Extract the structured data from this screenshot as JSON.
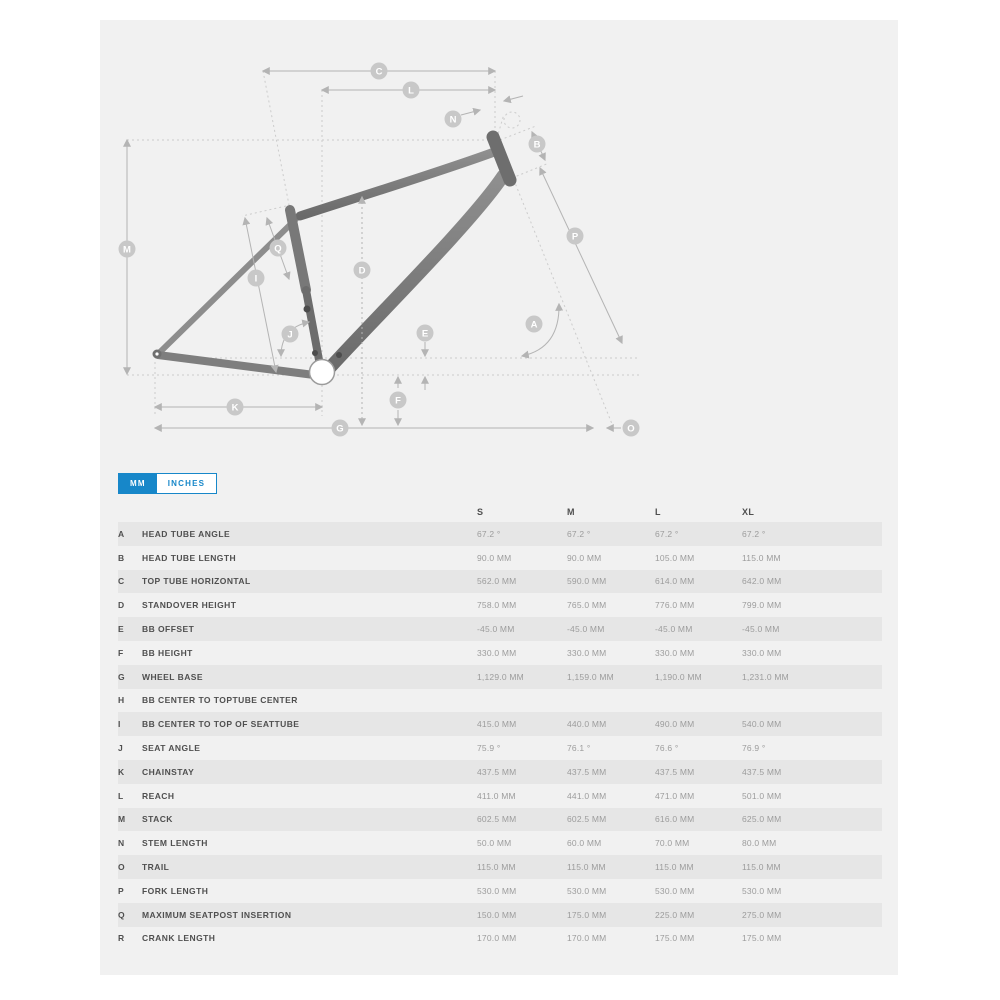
{
  "accent_color": "#1787c9",
  "toggle": {
    "mm_label": "MM",
    "inches_label": "INCHES"
  },
  "diagram": {
    "markers": {
      "A": "A",
      "B": "B",
      "C": "C",
      "D": "D",
      "E": "E",
      "F": "F",
      "G": "G",
      "I": "I",
      "J": "J",
      "K": "K",
      "L": "L",
      "M": "M",
      "N": "N",
      "O": "O",
      "P": "P",
      "Q": "Q"
    }
  },
  "table": {
    "columns": [
      "S",
      "M",
      "L",
      "XL"
    ],
    "rows": [
      {
        "letter": "A",
        "label": "HEAD TUBE ANGLE",
        "values": [
          "67.2 °",
          "67.2 °",
          "67.2 °",
          "67.2 °"
        ]
      },
      {
        "letter": "B",
        "label": "HEAD TUBE LENGTH",
        "values": [
          "90.0 MM",
          "90.0 MM",
          "105.0 MM",
          "115.0 MM"
        ]
      },
      {
        "letter": "C",
        "label": "TOP TUBE HORIZONTAL",
        "values": [
          "562.0 MM",
          "590.0 MM",
          "614.0 MM",
          "642.0 MM"
        ]
      },
      {
        "letter": "D",
        "label": "STANDOVER HEIGHT",
        "values": [
          "758.0 MM",
          "765.0 MM",
          "776.0 MM",
          "799.0 MM"
        ]
      },
      {
        "letter": "E",
        "label": "BB OFFSET",
        "values": [
          "-45.0 MM",
          "-45.0 MM",
          "-45.0 MM",
          "-45.0 MM"
        ]
      },
      {
        "letter": "F",
        "label": "BB HEIGHT",
        "values": [
          "330.0 MM",
          "330.0 MM",
          "330.0 MM",
          "330.0 MM"
        ]
      },
      {
        "letter": "G",
        "label": "WHEEL BASE",
        "values": [
          "1,129.0 MM",
          "1,159.0 MM",
          "1,190.0 MM",
          "1,231.0 MM"
        ]
      },
      {
        "letter": "H",
        "label": "BB CENTER TO TOPTUBE CENTER",
        "values": [
          "",
          "",
          "",
          ""
        ]
      },
      {
        "letter": "I",
        "label": "BB CENTER TO TOP OF SEATTUBE",
        "values": [
          "415.0 MM",
          "440.0 MM",
          "490.0 MM",
          "540.0 MM"
        ]
      },
      {
        "letter": "J",
        "label": "SEAT ANGLE",
        "values": [
          "75.9 °",
          "76.1 °",
          "76.6 °",
          "76.9 °"
        ]
      },
      {
        "letter": "K",
        "label": "CHAINSTAY",
        "values": [
          "437.5 MM",
          "437.5 MM",
          "437.5 MM",
          "437.5 MM"
        ]
      },
      {
        "letter": "L",
        "label": "REACH",
        "values": [
          "411.0 MM",
          "441.0 MM",
          "471.0 MM",
          "501.0 MM"
        ]
      },
      {
        "letter": "M",
        "label": "STACK",
        "values": [
          "602.5 MM",
          "602.5 MM",
          "616.0 MM",
          "625.0 MM"
        ]
      },
      {
        "letter": "N",
        "label": "STEM LENGTH",
        "values": [
          "50.0 MM",
          "60.0 MM",
          "70.0 MM",
          "80.0 MM"
        ]
      },
      {
        "letter": "O",
        "label": "TRAIL",
        "values": [
          "115.0 MM",
          "115.0 MM",
          "115.0 MM",
          "115.0 MM"
        ]
      },
      {
        "letter": "P",
        "label": "FORK LENGTH",
        "values": [
          "530.0 MM",
          "530.0 MM",
          "530.0 MM",
          "530.0 MM"
        ]
      },
      {
        "letter": "Q",
        "label": "MAXIMUM SEATPOST INSERTION",
        "values": [
          "150.0 MM",
          "175.0 MM",
          "225.0 MM",
          "275.0 MM"
        ]
      },
      {
        "letter": "R",
        "label": "CRANK LENGTH",
        "values": [
          "170.0 MM",
          "170.0 MM",
          "175.0 MM",
          "175.0 MM"
        ]
      }
    ]
  }
}
